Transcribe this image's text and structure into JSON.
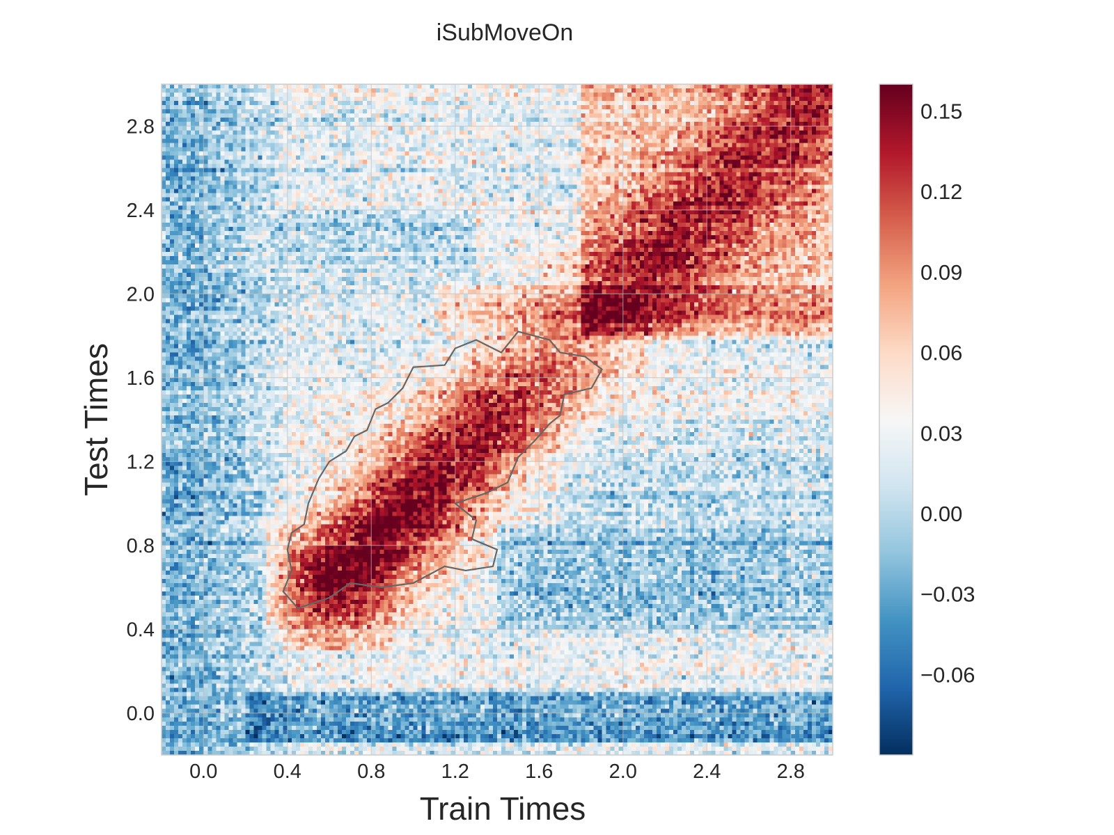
{
  "chart_data": {
    "type": "heatmap",
    "title": "iSubMoveOn",
    "xlabel": "Train Times",
    "ylabel": "Test Times",
    "xlim": [
      -0.2,
      3.0
    ],
    "ylim": [
      -0.2,
      3.0
    ],
    "x_ticks": [
      0.0,
      0.4,
      0.8,
      1.2,
      1.6,
      2.0,
      2.4,
      2.8
    ],
    "x_tick_labels": [
      "0.0",
      "0.4",
      "0.8",
      "1.2",
      "1.6",
      "2.0",
      "2.4",
      "2.8"
    ],
    "y_ticks": [
      0.0,
      0.4,
      0.8,
      1.2,
      1.6,
      2.0,
      2.4,
      2.8
    ],
    "y_tick_labels": [
      "0.0",
      "0.4",
      "0.8",
      "1.2",
      "1.6",
      "2.0",
      "2.4",
      "2.8"
    ],
    "grid": true,
    "colormap": "RdBu_r",
    "color_range": [
      -0.09,
      0.16
    ],
    "colorbar": {
      "position": "right",
      "ticks": [
        0.15,
        0.12,
        0.09,
        0.06,
        0.03,
        0.0,
        -0.03,
        -0.06
      ],
      "tick_labels": [
        "0.15",
        "0.12",
        "0.09",
        "0.06",
        "0.03",
        "0.00",
        "−0.03",
        "−0.06"
      ]
    },
    "significance_contour": {
      "color": "#666666",
      "approx_region": "band along diagonal from train 0.45–1.9 s, test 0.5–1.8 s"
    },
    "pattern_description_values": {
      "diagonal_peak": 0.14,
      "late_plateau": 0.07,
      "baseline_negative": -0.06
    }
  }
}
